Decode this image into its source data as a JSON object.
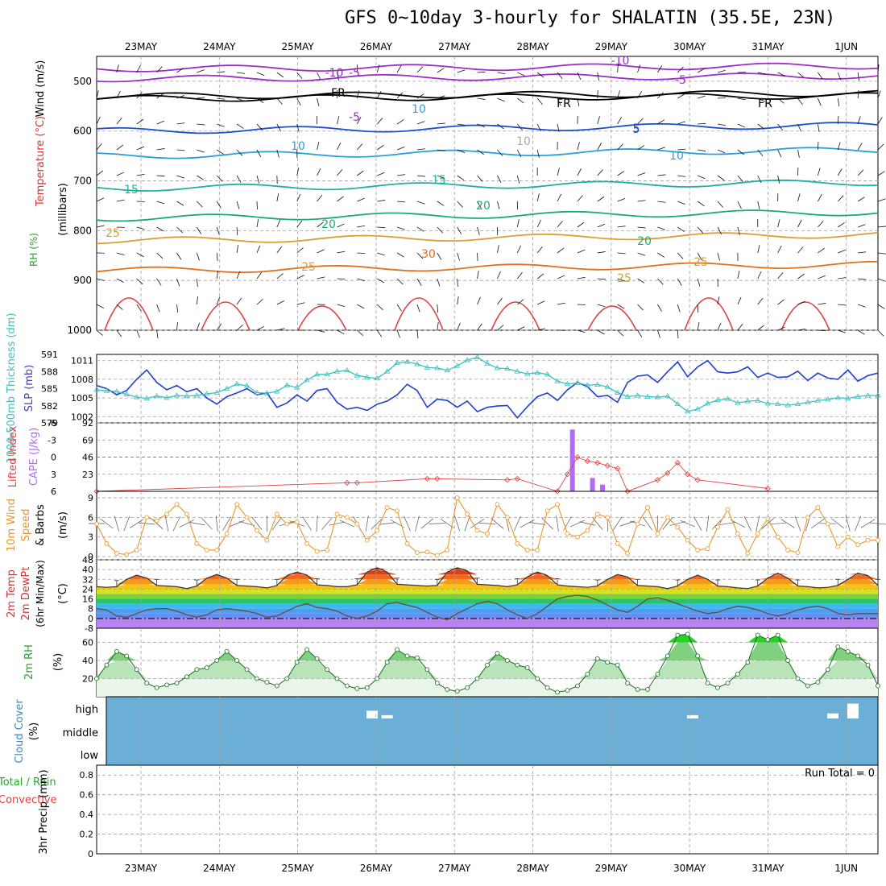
{
  "title": "GFS 0~10day 3-hourly for SHALATIN (35.5E, 23N)",
  "dates": [
    "23MAY",
    "24MAY",
    "25MAY",
    "26MAY",
    "27MAY",
    "28MAY",
    "29MAY",
    "30MAY",
    "31MAY",
    "1JUN"
  ],
  "colors": {
    "frame": "#000000",
    "grid": "#a0a0a0",
    "cloud_bg": "#6baed6",
    "slp": "#1f3fcf",
    "thickness": "#3cc1c1",
    "cape": "#b36cf0",
    "lifted": "#e04040",
    "wind": "#e8962a",
    "rh": "#2aa02a",
    "temp_top": "#7a1a1a"
  },
  "panels": {
    "upper_air": {
      "y_label_1": "Wind (m/s)",
      "y_label_2": "Temperature (°C)",
      "y_label_3": "RH (%)",
      "y_label_4": "(millibars)",
      "ticks": [
        "500",
        "600",
        "700",
        "800",
        "900",
        "1000"
      ],
      "contour_labels": [
        "-5",
        "FR",
        "-5",
        "10",
        "15",
        "25",
        "25",
        "20",
        "15",
        "30",
        "10",
        "5",
        "10",
        "20",
        "25",
        "-10",
        "-5",
        "5",
        "10",
        "20",
        "25",
        "FR",
        "FR",
        "-10"
      ]
    },
    "slp_thickness": {
      "y_label_left": "1000-500mb Thickness (dm)",
      "y_label_right": "SLP (mb)",
      "left_ticks": [
        "591",
        "588",
        "585",
        "582",
        "579"
      ],
      "right_ticks": [
        "1011",
        "1008",
        "1005",
        "1002"
      ]
    },
    "cape_li": {
      "y_label_left": "Lifted Index",
      "y_label_right": "CAPE (J/kg)",
      "left_ticks": [
        "-6",
        "-3",
        "0",
        "3",
        "6"
      ],
      "right_ticks": [
        "92",
        "69",
        "46",
        "23"
      ]
    },
    "wind10m": {
      "y_label_1": "10m Wind",
      "y_label_2": "Speed",
      "y_label_3": "& Barbs",
      "y_label_4": "(m/s)",
      "ticks": [
        "9",
        "6",
        "3",
        "0"
      ]
    },
    "temp2m": {
      "y_label_1": "2m Temp",
      "y_label_2": "2m DewPt",
      "y_label_3": "(6hr Min/Max)",
      "y_label_4": "(°C)",
      "ticks": [
        "48",
        "40",
        "32",
        "24",
        "16",
        "8",
        "0",
        "-8"
      ]
    },
    "rh2m": {
      "y_label_1": "2m RH",
      "y_label_2": "(%)",
      "ticks": [
        "60",
        "40",
        "20"
      ]
    },
    "cloud": {
      "y_label_1": "Cloud Cover",
      "y_label_2": "(%)",
      "ticks": [
        "high",
        "middle",
        "low"
      ]
    },
    "precip": {
      "y_label_1": "Total / Rain",
      "y_label_2": "Convective",
      "y_label_3": "3hr Precip (mm)",
      "ticks": [
        "0.8",
        "0.6",
        "0.4",
        "0.2",
        "0"
      ],
      "run_total": "Run Total = 0"
    }
  },
  "chart_data": [
    {
      "type": "line",
      "title": "1000-500mb Thickness (dm) / SLP (mb)",
      "series": [
        {
          "name": "SLP (mb)",
          "values": [
            1007,
            1006.5,
            1005.5,
            1006.2,
            1008,
            1009.5,
            1007.5,
            1006.3,
            1007,
            1006,
            1006.5,
            1005,
            1004,
            1005.2,
            1005.8,
            1006.5,
            1005.5,
            1005.8,
            1003.5,
            1004.2,
            1005.5,
            1004.5,
            1006.2,
            1006.5,
            1004.3,
            1003.2,
            1003.5,
            1003,
            1004,
            1004.5,
            1005.5,
            1007.2,
            1006.2,
            1003.5,
            1004.8,
            1004.6,
            1003.5,
            1004.5,
            1002.8,
            1003.5,
            1003.7,
            1003.8,
            1001.8,
            1003.6,
            1005.2,
            1005.8,
            1004.6,
            1006.3,
            1007.5,
            1006.8,
            1005.2,
            1005.4,
            1004.3,
            1007.5,
            1008.5,
            1008.7,
            1007.5,
            1009.2,
            1010.8,
            1008.4,
            1010,
            1011,
            1009.2,
            1009,
            1009.2,
            1010,
            1008.3,
            1009,
            1008.3,
            1008.4,
            1009.3,
            1007.8,
            1009,
            1008.2,
            1008,
            1009.5,
            1007.7,
            1008.6,
            1009
          ]
        },
        {
          "name": "1000-500mb Thickness (dm)",
          "values": [
            584.8,
            584.6,
            584.5,
            584,
            583.5,
            583.3,
            583.7,
            583.4,
            583.8,
            583.7,
            583.8,
            584.1,
            584.3,
            585,
            585.8,
            585.5,
            584.3,
            584.2,
            584.5,
            585.6,
            585.2,
            586.5,
            587.5,
            587.5,
            588,
            588.2,
            587.3,
            587,
            586.8,
            588,
            589.5,
            589.7,
            589.3,
            588.7,
            588.6,
            588.2,
            589,
            590,
            590.5,
            589.4,
            588.6,
            588.5,
            588,
            587.6,
            587.8,
            587.5,
            586.3,
            585.8,
            586,
            585.6,
            585.7,
            585.3,
            584.3,
            583.6,
            583.8,
            583.6,
            583.5,
            583.7,
            582.3,
            581,
            581.4,
            582.4,
            583,
            583.2,
            582.5,
            582.8,
            582.9,
            582.4,
            582.3,
            582.1,
            582.3,
            582.6,
            582.9,
            583.1,
            583.4,
            583.3,
            583.6,
            583.8,
            583.8
          ]
        }
      ],
      "ylim_left": [
        579,
        591
      ],
      "ylim_right": [
        1001,
        1012
      ]
    },
    {
      "type": "bar",
      "title": "Lifted Index / CAPE (J/kg)",
      "cape_bars": [
        {
          "x": 47.5,
          "value": 83
        },
        {
          "x": 49.5,
          "value": 18
        },
        {
          "x": 50.5,
          "value": 9
        }
      ],
      "lifted_index": [
        {
          "x": 0,
          "value": 6
        },
        {
          "x": 25,
          "value": 4.5
        },
        {
          "x": 26,
          "value": 4.5
        },
        {
          "x": 33,
          "value": 3.8
        },
        {
          "x": 34,
          "value": 3.8
        },
        {
          "x": 41,
          "value": 4
        },
        {
          "x": 42,
          "value": 3.8
        },
        {
          "x": 46,
          "value": 6
        },
        {
          "x": 47,
          "value": 3
        },
        {
          "x": 48,
          "value": 0
        },
        {
          "x": 49,
          "value": 0.7
        },
        {
          "x": 50,
          "value": 1
        },
        {
          "x": 51,
          "value": 1.5
        },
        {
          "x": 52,
          "value": 2
        },
        {
          "x": 53,
          "value": 6
        },
        {
          "x": 56,
          "value": 4
        },
        {
          "x": 57,
          "value": 2.8
        },
        {
          "x": 58,
          "value": 1
        },
        {
          "x": 59,
          "value": 3
        },
        {
          "x": 60,
          "value": 4
        },
        {
          "x": 67,
          "value": 5.5
        }
      ],
      "ylim_left": [
        -6,
        6
      ],
      "ylim_right": [
        0,
        92
      ]
    },
    {
      "type": "line",
      "title": "10m Wind Speed & Barbs (m/s)",
      "series": [
        {
          "name": "10m Wind Speed",
          "values": [
            5,
            2,
            0.5,
            0.3,
            1,
            6,
            5.5,
            6.5,
            8,
            6.5,
            2,
            1,
            1,
            3.5,
            8,
            6,
            4,
            2.5,
            6.5,
            5,
            5.3,
            2,
            0.8,
            1,
            6.5,
            6,
            5,
            2.5,
            4,
            7.5,
            7,
            2,
            0.6,
            0.7,
            0.2,
            1,
            9,
            6.5,
            4,
            3.5,
            8,
            6,
            2,
            1,
            1,
            7,
            8,
            3.5,
            3,
            4,
            6.5,
            6,
            2,
            0.5,
            5,
            7.5,
            3.5,
            6,
            4.5,
            2.5,
            1,
            1.2,
            4.5,
            7.2,
            3.5,
            0.5,
            3.5,
            5.8,
            3,
            1,
            0.6,
            6,
            7.5,
            5,
            1.5,
            3,
            1.8,
            2.5,
            2.5
          ]
        }
      ],
      "ylim": [
        0,
        9.5
      ]
    },
    {
      "type": "line",
      "title": "2m Temp / 2m DewPt (6hr Min/Max) (°C)",
      "series": [
        {
          "name": "2m Temp",
          "values": [
            26,
            25.5,
            26,
            32,
            35.5,
            33,
            27,
            26.5,
            26,
            24.5,
            26.5,
            33,
            36,
            33,
            27,
            26.5,
            26,
            25,
            27,
            35,
            38,
            35.5,
            27.5,
            27,
            26,
            26,
            27.5,
            38,
            41.5,
            38,
            28,
            27.5,
            27,
            26.5,
            27,
            38,
            41.5,
            39,
            28,
            27.5,
            27,
            26,
            27.5,
            34,
            38,
            35,
            27.5,
            26.5,
            26,
            25.5,
            26.5,
            32,
            36,
            34,
            27,
            26.5,
            26,
            24.5,
            26.5,
            32,
            35.5,
            32,
            26.5,
            26,
            25,
            24.5,
            26.5,
            33,
            37,
            33,
            26.5,
            26,
            25,
            25.5,
            27,
            32,
            37,
            35,
            27
          ]
        },
        {
          "name": "2m DewPt",
          "values": [
            8,
            7,
            2,
            1,
            4,
            7,
            8,
            8,
            6,
            3,
            1,
            3,
            7,
            8,
            7,
            6,
            4,
            1,
            2,
            6,
            10,
            12,
            9,
            8,
            6,
            2,
            0,
            2,
            6,
            12,
            13,
            11,
            9,
            5,
            1,
            -1,
            4,
            8,
            12,
            14,
            12,
            7,
            3,
            0,
            4,
            10,
            16,
            18,
            19,
            18,
            15,
            11,
            7,
            5,
            10,
            16,
            17,
            15,
            12,
            9,
            6,
            4,
            5,
            8,
            10,
            9,
            7,
            4,
            2,
            4,
            7,
            9,
            10,
            8,
            4,
            3,
            4,
            4,
            4
          ]
        }
      ],
      "ylim": [
        -8,
        48
      ]
    },
    {
      "type": "area",
      "title": "2m RH (%)",
      "series": [
        {
          "name": "2m RH",
          "values": [
            20,
            35,
            50,
            45,
            30,
            15,
            10,
            13,
            15,
            22,
            30,
            32,
            40,
            50,
            40,
            30,
            20,
            16,
            12,
            20,
            38,
            52,
            42,
            30,
            20,
            12,
            9,
            10,
            20,
            38,
            52,
            45,
            43,
            30,
            15,
            8,
            6,
            10,
            20,
            35,
            48,
            40,
            35,
            32,
            20,
            10,
            5,
            7,
            12,
            25,
            42,
            38,
            35,
            15,
            8,
            8,
            25,
            45,
            68,
            69,
            45,
            15,
            10,
            15,
            25,
            38,
            68,
            63,
            68,
            40,
            20,
            12,
            16,
            30,
            55,
            50,
            45,
            35,
            12
          ]
        }
      ],
      "ylim": [
        0,
        72
      ]
    },
    {
      "type": "bar",
      "title": "Cloud Cover (%)",
      "cloud_high_blocks": [
        {
          "x": 27.5,
          "value": 30
        },
        {
          "x": 29,
          "value": 5
        },
        {
          "x": 59.5,
          "value": 5
        },
        {
          "x": 73.5,
          "value": 15
        },
        {
          "x": 75.5,
          "value": 70
        }
      ],
      "ylim": [
        0,
        100
      ]
    },
    {
      "type": "line",
      "title": "3hr Precip (mm)",
      "series": [
        {
          "name": "Total / Rain",
          "values": []
        },
        {
          "name": "Convective",
          "values": []
        }
      ],
      "ylim": [
        0,
        0.9
      ]
    }
  ]
}
